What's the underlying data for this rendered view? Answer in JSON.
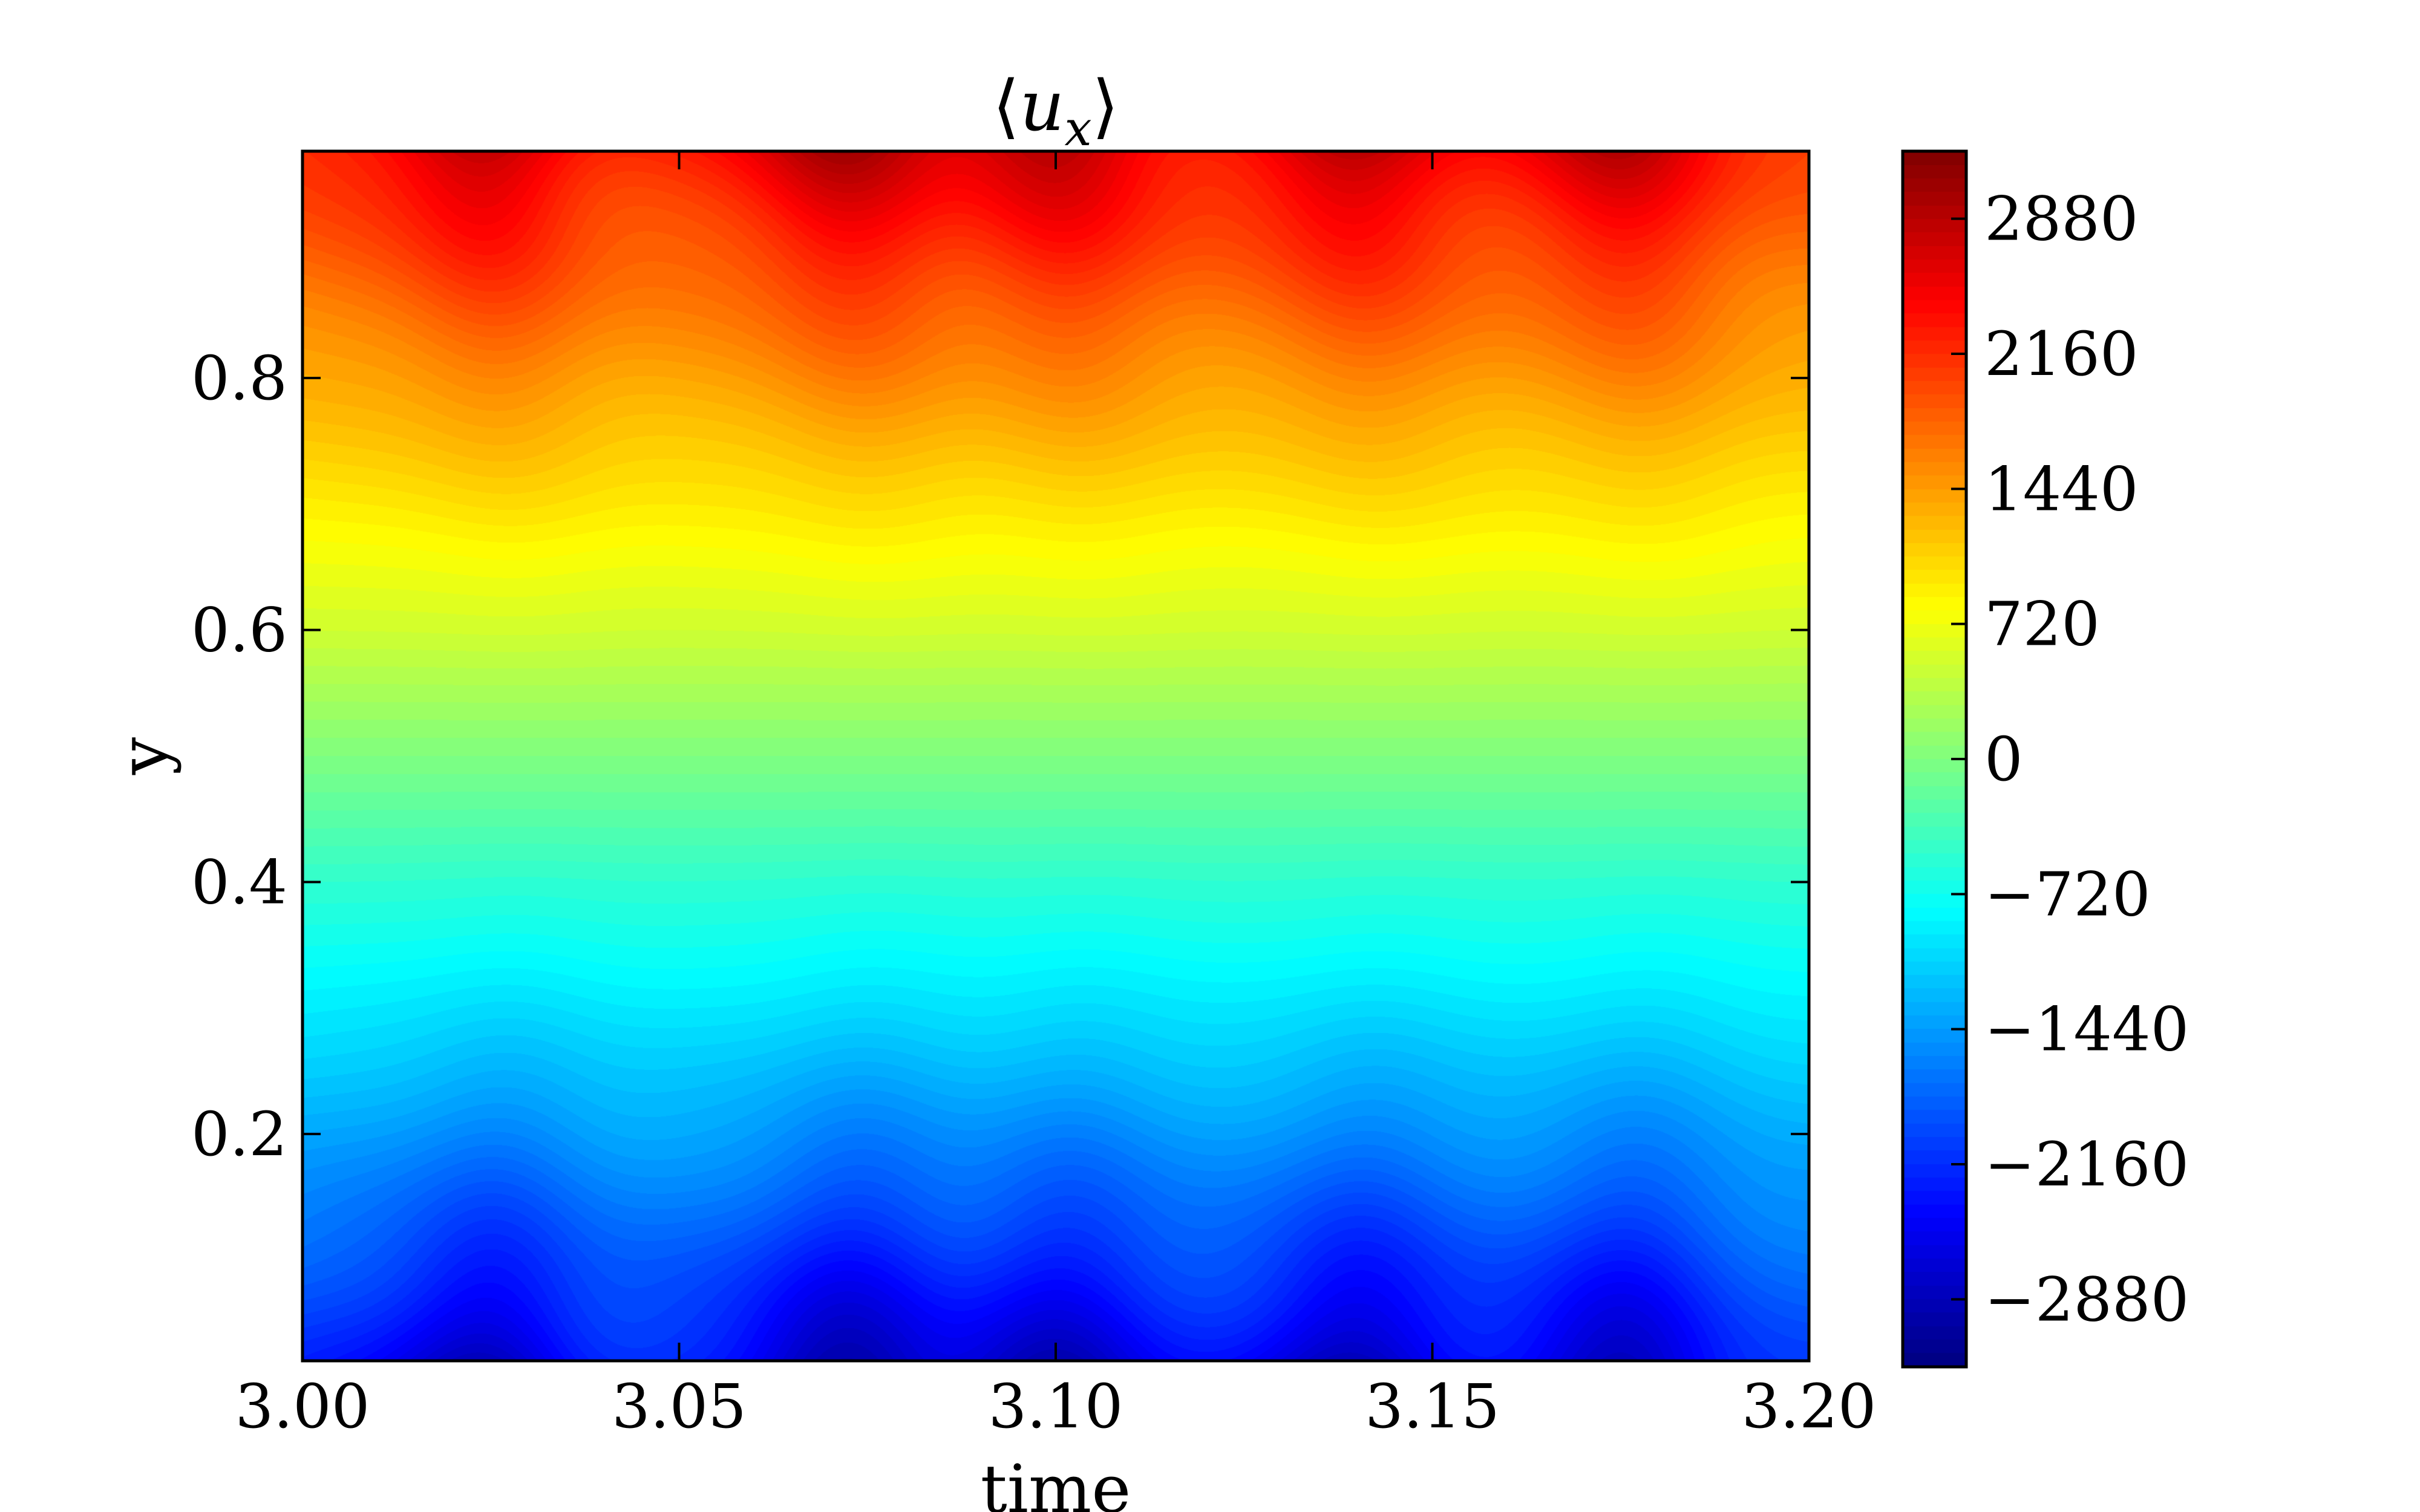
{
  "chart_data": {
    "type": "heatmap",
    "title": "⟨u_x⟩",
    "title_parts": {
      "open": "⟨",
      "base": "u",
      "sub": "x",
      "close": "⟩"
    },
    "xlabel": "time",
    "ylabel": "y",
    "xlim": [
      3.0,
      3.2
    ],
    "ylim": [
      0.02,
      0.98
    ],
    "x_ticks": [
      3.0,
      3.05,
      3.1,
      3.15,
      3.2
    ],
    "x_tick_labels": [
      "3.00",
      "3.05",
      "3.10",
      "3.15",
      "3.20"
    ],
    "y_ticks": [
      0.2,
      0.4,
      0.6,
      0.8
    ],
    "y_tick_labels": [
      "0.2",
      "0.4",
      "0.6",
      "0.8"
    ],
    "colorbar": {
      "colormap": "jet",
      "vmin": -3240,
      "vmax": 3240,
      "ticks": [
        2880,
        2160,
        1440,
        720,
        0,
        -720,
        -1440,
        -2160,
        -2880
      ],
      "tick_labels": [
        "2880",
        "2160",
        "1440",
        "720",
        "0",
        "−720",
        "−1440",
        "−2160",
        "−2880"
      ]
    },
    "field": {
      "description_free": true,
      "mean_profile": {
        "y": [
          0.02,
          0.1,
          0.2,
          0.3,
          0.4,
          0.5,
          0.6,
          0.7,
          0.8,
          0.9,
          0.98
        ],
        "value": [
          -2000,
          -1700,
          -1300,
          -900,
          -500,
          0,
          500,
          900,
          1300,
          1700,
          2000
        ]
      },
      "pulse_times": [
        3.024,
        3.071,
        3.1,
        3.139,
        3.175
      ],
      "pulse_amplitude": 900
    }
  }
}
